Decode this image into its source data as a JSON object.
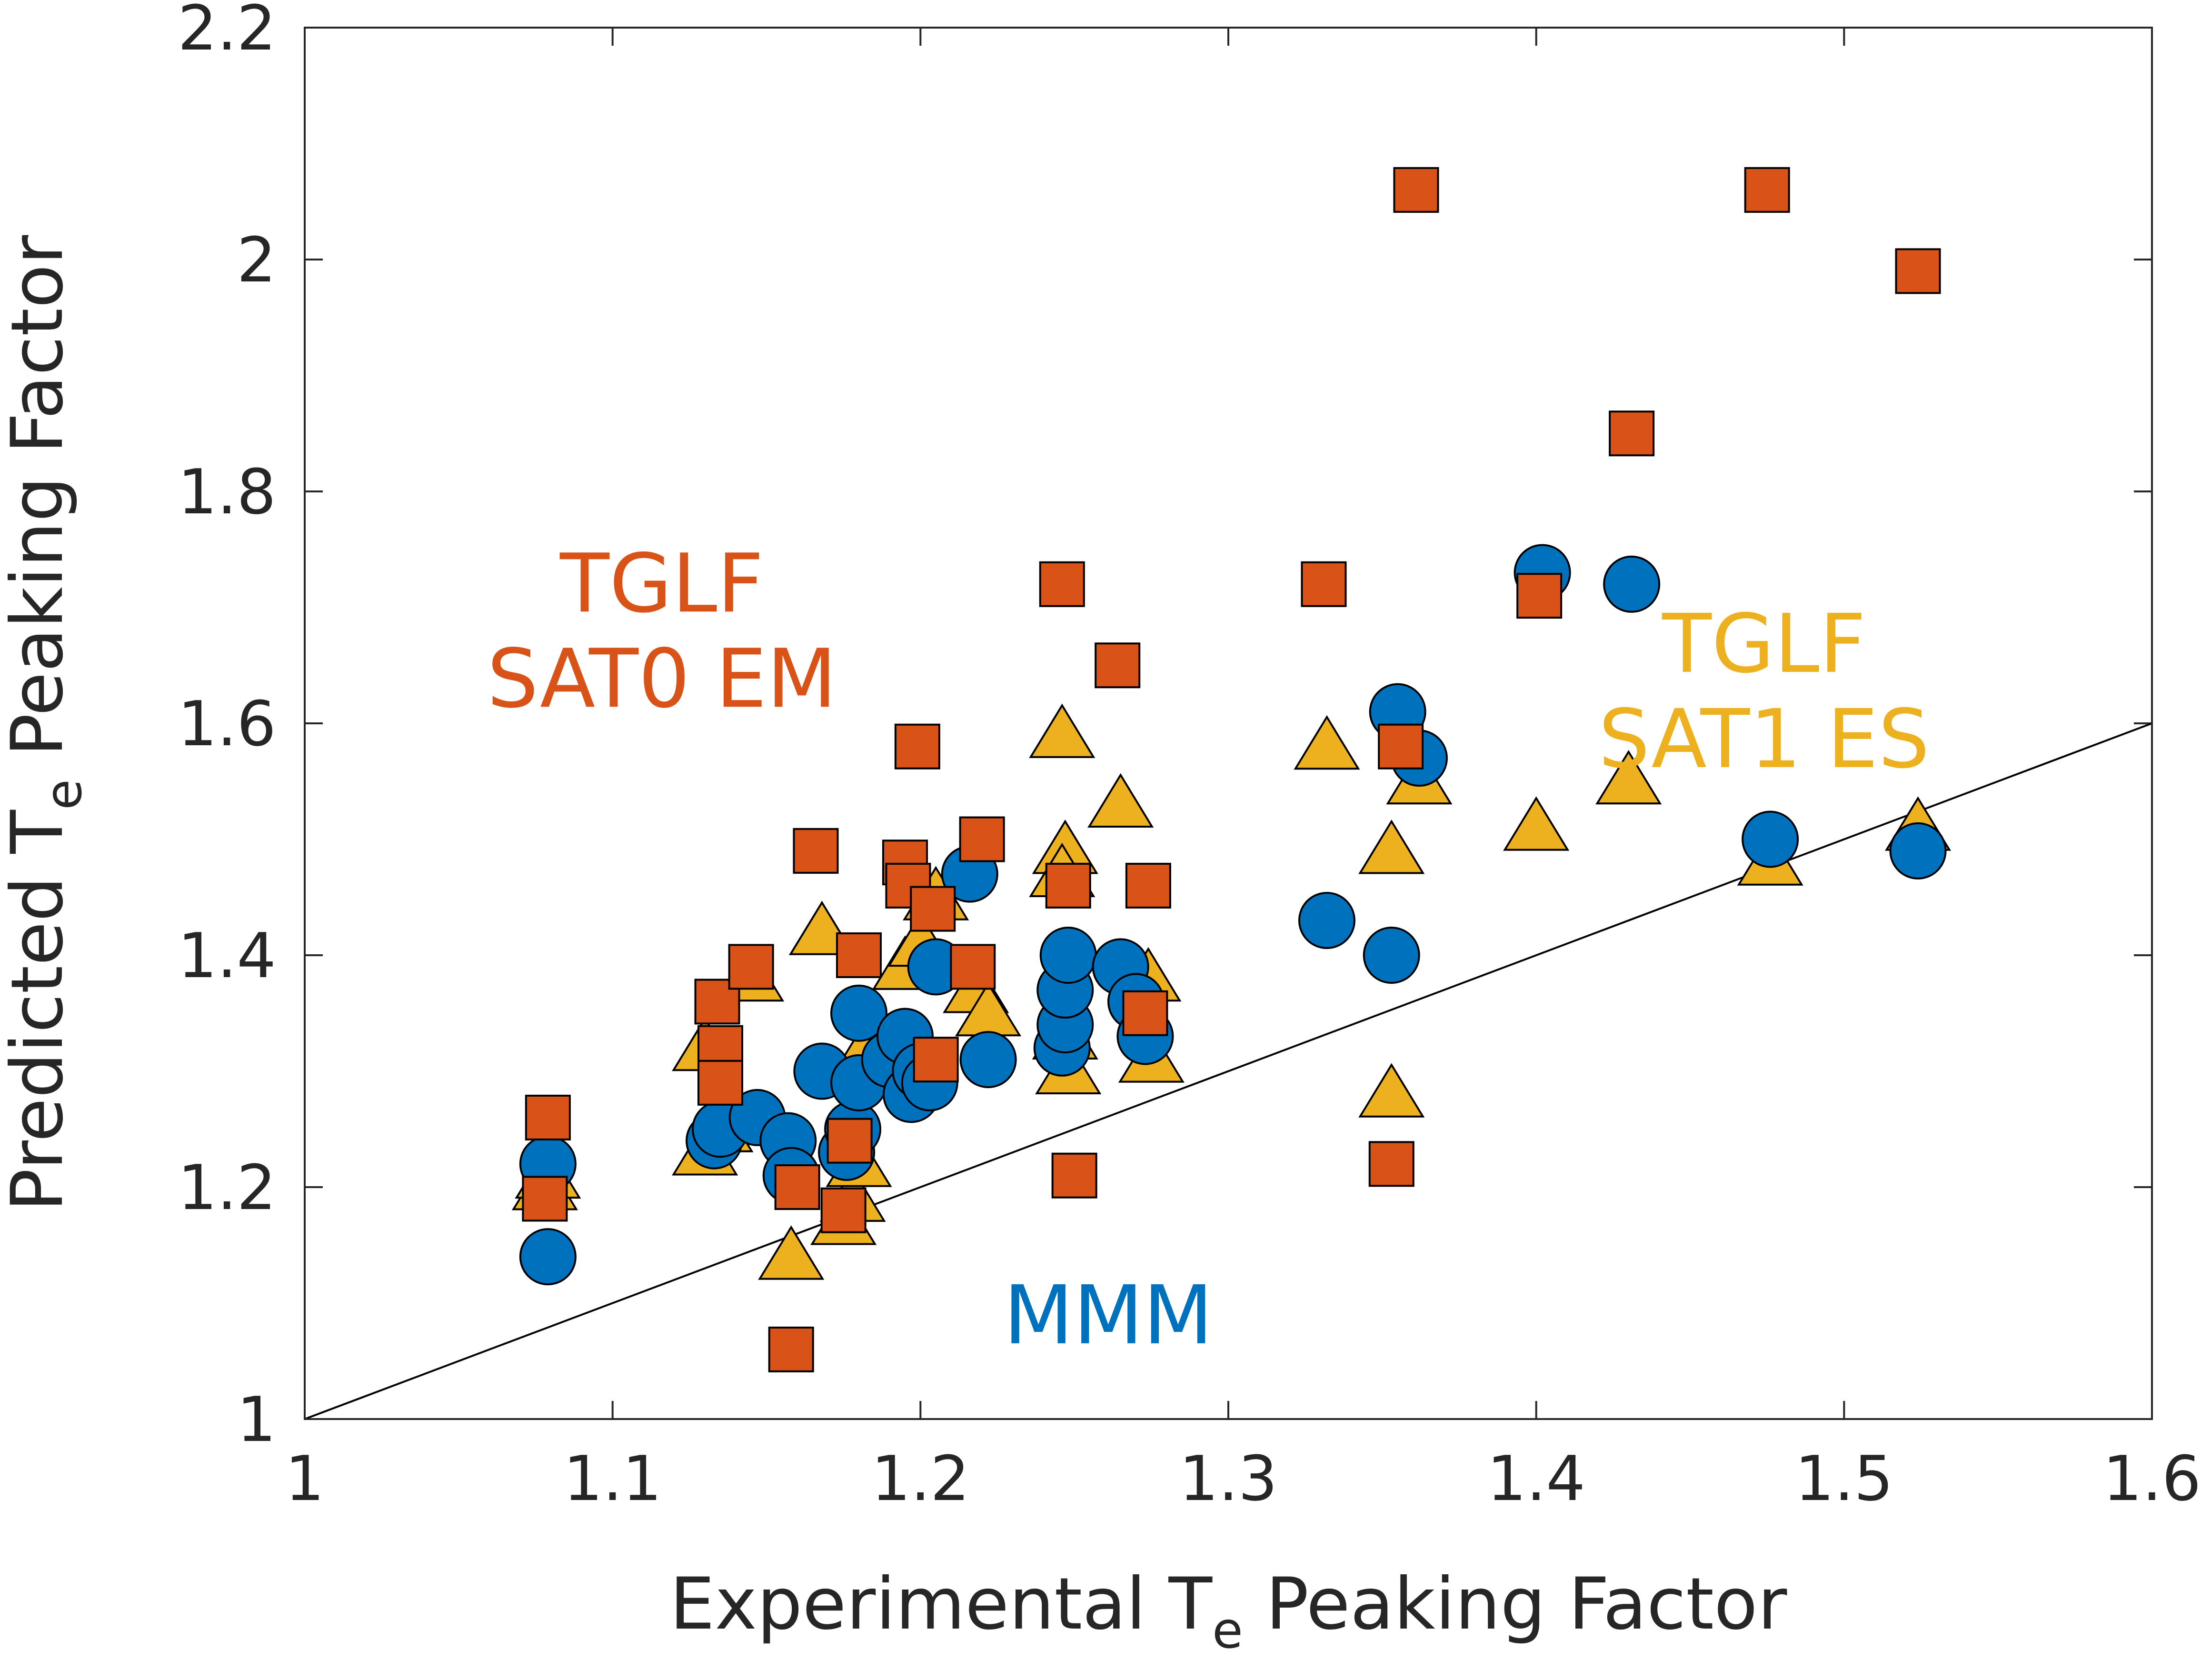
{
  "chart_data": {
    "type": "scatter",
    "xlabel": {
      "main": "Experimental T",
      "sub": "e",
      "rest": " Peaking Factor"
    },
    "ylabel": {
      "main": "Predicted T",
      "sub": "e",
      "rest": " Peaking Factor"
    },
    "xlim": [
      1,
      1.6
    ],
    "ylim": [
      1,
      2.2
    ],
    "xticks": [
      {
        "value": 1,
        "label": "1"
      },
      {
        "value": 1.1,
        "label": "1.1"
      },
      {
        "value": 1.2,
        "label": "1.2"
      },
      {
        "value": 1.3,
        "label": "1.3"
      },
      {
        "value": 1.4,
        "label": "1.4"
      },
      {
        "value": 1.5,
        "label": "1.5"
      },
      {
        "value": 1.6,
        "label": "1.6"
      }
    ],
    "yticks": [
      {
        "value": 1,
        "label": "1"
      },
      {
        "value": 1.2,
        "label": "1.2"
      },
      {
        "value": 1.4,
        "label": "1.4"
      },
      {
        "value": 1.6,
        "label": "1.6"
      },
      {
        "value": 1.8,
        "label": "1.8"
      },
      {
        "value": 2,
        "label": "2"
      },
      {
        "value": 2.2,
        "label": "2.2"
      }
    ],
    "grid": false,
    "reference_line": {
      "x": [
        1,
        1.6
      ],
      "y": [
        1,
        1.6
      ]
    },
    "annotations": [
      {
        "id": "tglf-sat0",
        "lines": [
          "TGLF",
          "SAT0 EM"
        ],
        "color": "#D95319",
        "x": 1.116,
        "y": 1.68
      },
      {
        "id": "tglf-sat1",
        "lines": [
          "TGLF",
          "SAT1 ES"
        ],
        "color": "#EDB120",
        "x": 1.474,
        "y": 1.628
      },
      {
        "id": "mmm",
        "lines": [
          "MMM"
        ],
        "color": "#0072BD",
        "x": 1.261,
        "y": 1.09
      }
    ],
    "series": [
      {
        "marker": "triangle",
        "color": "#EDB120",
        "points": [
          [
            1.078,
            1.2
          ],
          [
            1.079,
            1.21
          ],
          [
            1.13,
            1.23
          ],
          [
            1.135,
            1.25
          ],
          [
            1.13,
            1.32
          ],
          [
            1.145,
            1.38
          ],
          [
            1.158,
            1.14
          ],
          [
            1.168,
            1.42
          ],
          [
            1.175,
            1.17
          ],
          [
            1.178,
            1.19
          ],
          [
            1.18,
            1.22
          ],
          [
            1.185,
            1.33
          ],
          [
            1.195,
            1.39
          ],
          [
            1.2,
            1.41
          ],
          [
            1.205,
            1.45
          ],
          [
            1.218,
            1.37
          ],
          [
            1.222,
            1.35
          ],
          [
            1.246,
            1.59
          ],
          [
            1.247,
            1.49
          ],
          [
            1.246,
            1.47
          ],
          [
            1.247,
            1.33
          ],
          [
            1.248,
            1.3
          ],
          [
            1.265,
            1.53
          ],
          [
            1.274,
            1.38
          ],
          [
            1.275,
            1.31
          ],
          [
            1.332,
            1.58
          ],
          [
            1.353,
            1.49
          ],
          [
            1.353,
            1.28
          ],
          [
            1.362,
            1.55
          ],
          [
            1.4,
            1.51
          ],
          [
            1.43,
            1.55
          ],
          [
            1.476,
            1.48
          ],
          [
            1.524,
            1.51
          ]
        ]
      },
      {
        "marker": "circle",
        "color": "#0072BD",
        "points": [
          [
            1.079,
            1.22
          ],
          [
            1.079,
            1.14
          ],
          [
            1.133,
            1.24
          ],
          [
            1.135,
            1.25
          ],
          [
            1.147,
            1.26
          ],
          [
            1.157,
            1.24
          ],
          [
            1.158,
            1.21
          ],
          [
            1.168,
            1.3
          ],
          [
            1.176,
            1.23
          ],
          [
            1.178,
            1.25
          ],
          [
            1.18,
            1.29
          ],
          [
            1.18,
            1.35
          ],
          [
            1.19,
            1.31
          ],
          [
            1.195,
            1.33
          ],
          [
            1.197,
            1.28
          ],
          [
            1.2,
            1.3
          ],
          [
            1.203,
            1.29
          ],
          [
            1.205,
            1.39
          ],
          [
            1.216,
            1.47
          ],
          [
            1.222,
            1.31
          ],
          [
            1.246,
            1.32
          ],
          [
            1.247,
            1.34
          ],
          [
            1.247,
            1.37
          ],
          [
            1.248,
            1.4
          ],
          [
            1.265,
            1.39
          ],
          [
            1.27,
            1.36
          ],
          [
            1.273,
            1.33
          ],
          [
            1.332,
            1.43
          ],
          [
            1.353,
            1.4
          ],
          [
            1.355,
            1.61
          ],
          [
            1.362,
            1.57
          ],
          [
            1.402,
            1.73
          ],
          [
            1.431,
            1.72
          ],
          [
            1.476,
            1.5
          ],
          [
            1.524,
            1.49
          ]
        ]
      },
      {
        "marker": "square",
        "color": "#D95319",
        "points": [
          [
            1.079,
            1.26
          ],
          [
            1.078,
            1.19
          ],
          [
            1.134,
            1.36
          ],
          [
            1.135,
            1.32
          ],
          [
            1.135,
            1.29
          ],
          [
            1.145,
            1.39
          ],
          [
            1.158,
            1.06
          ],
          [
            1.16,
            1.2
          ],
          [
            1.166,
            1.49
          ],
          [
            1.175,
            1.18
          ],
          [
            1.177,
            1.24
          ],
          [
            1.18,
            1.4
          ],
          [
            1.195,
            1.48
          ],
          [
            1.196,
            1.46
          ],
          [
            1.199,
            1.58
          ],
          [
            1.204,
            1.44
          ],
          [
            1.205,
            1.31
          ],
          [
            1.217,
            1.39
          ],
          [
            1.22,
            1.5
          ],
          [
            1.246,
            1.72
          ],
          [
            1.248,
            1.46
          ],
          [
            1.25,
            1.21
          ],
          [
            1.264,
            1.65
          ],
          [
            1.274,
            1.46
          ],
          [
            1.273,
            1.35
          ],
          [
            1.331,
            1.72
          ],
          [
            1.353,
            1.22
          ],
          [
            1.356,
            1.58
          ],
          [
            1.361,
            2.06
          ],
          [
            1.401,
            1.71
          ],
          [
            1.431,
            1.85
          ],
          [
            1.475,
            2.06
          ],
          [
            1.524,
            1.99
          ]
        ]
      }
    ]
  }
}
